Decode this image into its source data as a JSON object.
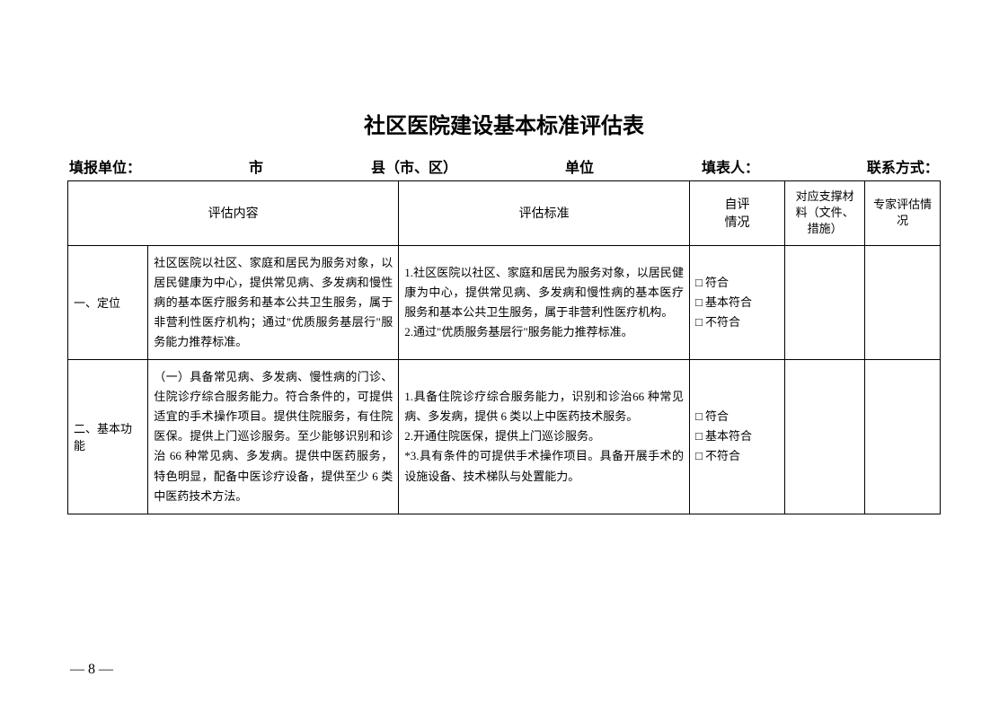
{
  "title": "社区医院建设基本标准评估表",
  "info": {
    "unit_label": "填报单位：",
    "city_label": "市",
    "county_label": "县（市、区）",
    "danwei_label": "单位",
    "filler_label": "填表人：",
    "contact_label": "联系方式："
  },
  "headers": {
    "content": "评估内容",
    "standard": "评估标准",
    "selfeval": "自评\n情况",
    "materials": "对应支撑材料（文件、措施）",
    "expert": "专家评估情况"
  },
  "rows": [
    {
      "category": "一、定位",
      "content": "社区医院以社区、家庭和居民为服务对象，以居民健康为中心，提供常见病、多发病和慢性病的基本医疗服务和基本公共卫生服务，属于非营利性医疗机构；通过\"优质服务基层行\"服务能力推荐标准。",
      "standard": "1.社区医院以社区、家庭和居民为服务对象，以居民健康为中心，提供常见病、多发病和慢性病的基本医疗服务和基本公共卫生服务，属于非营利性医疗机构。\n2.通过\"优质服务基层行\"服务能力推荐标准。",
      "checkbox1": "□ 符合",
      "checkbox2": "□ 基本符合",
      "checkbox3": "□ 不符合"
    },
    {
      "category": "二、基本功能",
      "content": "（一）具备常见病、多发病、慢性病的门诊、住院诊疗综合服务能力。符合条件的，可提供适宜的手术操作项目。提供住院服务，有住院医保。提供上门巡诊服务。至少能够识别和诊治 66 种常见病、多发病。提供中医药服务，特色明显，配备中医诊疗设备，提供至少 6 类中医药技术方法。",
      "standard": "1.具备住院诊疗综合服务能力，识别和诊治66 种常见病、多发病，提供 6 类以上中医药技术服务。\n2.开通住院医保，提供上门巡诊服务。\n*3.具有条件的可提供手术操作项目。具备开展手术的设施设备、技术梯队与处置能力。",
      "checkbox1": "□ 符合",
      "checkbox2": "□ 基本符合",
      "checkbox3": "□ 不符合"
    }
  ],
  "page_number": "— 8 —"
}
